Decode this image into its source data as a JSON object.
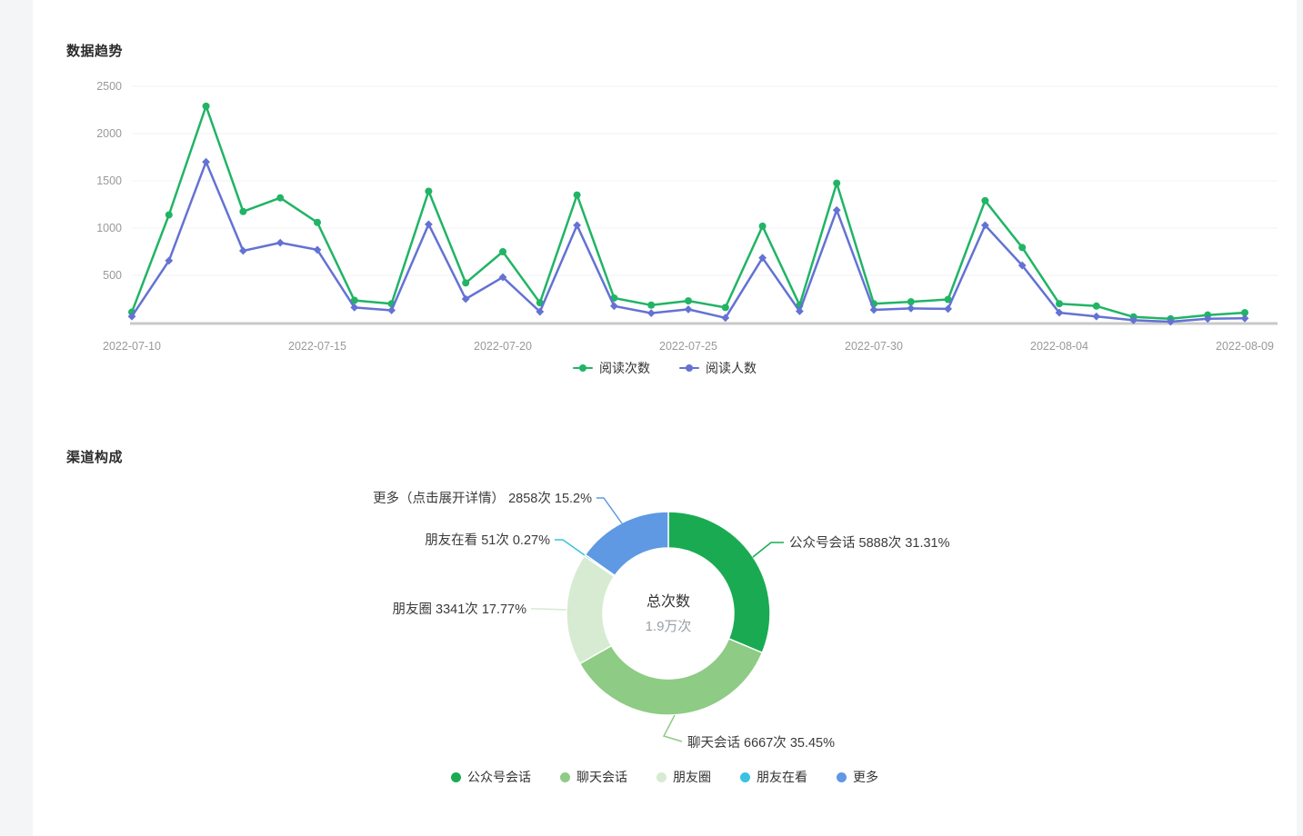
{
  "sections": {
    "trend": {
      "title": "数据趋势"
    },
    "channel": {
      "title": "渠道构成",
      "center_label": "总次数",
      "center_value": "1.9万次"
    }
  },
  "colors": {
    "read_count_line": "#21b465",
    "read_people_line": "#6472d4",
    "axis_text": "#999999",
    "gridline": "#f0f0f0",
    "axis_baseline": "#c9c9c9",
    "label_text": "#3b3b3b"
  },
  "chart_data": [
    {
      "id": "trend",
      "type": "line",
      "title": "数据趋势",
      "x": [
        "2022-07-10",
        "2022-07-11",
        "2022-07-12",
        "2022-07-13",
        "2022-07-14",
        "2022-07-15",
        "2022-07-16",
        "2022-07-17",
        "2022-07-18",
        "2022-07-19",
        "2022-07-20",
        "2022-07-21",
        "2022-07-22",
        "2022-07-23",
        "2022-07-24",
        "2022-07-25",
        "2022-07-26",
        "2022-07-27",
        "2022-07-28",
        "2022-07-29",
        "2022-07-30",
        "2022-07-31",
        "2022-08-01",
        "2022-08-02",
        "2022-08-03",
        "2022-08-04",
        "2022-08-05",
        "2022-08-06",
        "2022-08-07",
        "2022-08-08",
        "2022-08-09"
      ],
      "x_tick_labels": [
        "2022-07-10",
        "2022-07-15",
        "2022-07-20",
        "2022-07-25",
        "2022-07-30",
        "2022-08-04",
        "2022-08-09"
      ],
      "y_ticks": [
        500,
        1000,
        1500,
        2000,
        2500
      ],
      "ylim": [
        0,
        2500
      ],
      "grid": true,
      "legend_position": "bottom",
      "series": [
        {
          "name": "阅读次数",
          "color": "#21b465",
          "marker": "circle",
          "values": [
            110,
            1140,
            2290,
            1175,
            1320,
            1060,
            235,
            200,
            1390,
            420,
            750,
            210,
            1350,
            260,
            185,
            230,
            160,
            1020,
            185,
            1475,
            200,
            220,
            245,
            1290,
            795,
            200,
            175,
            60,
            40,
            80,
            105
          ]
        },
        {
          "name": "阅读人数",
          "color": "#6472d4",
          "marker": "diamond",
          "values": [
            65,
            655,
            1700,
            760,
            845,
            770,
            160,
            130,
            1040,
            250,
            480,
            115,
            1030,
            175,
            100,
            140,
            50,
            685,
            120,
            1190,
            135,
            150,
            145,
            1030,
            605,
            105,
            65,
            25,
            10,
            40,
            45
          ]
        }
      ]
    },
    {
      "id": "channel",
      "type": "pie",
      "title": "渠道构成",
      "center": {
        "label": "总次数",
        "value": "1.9万次"
      },
      "total_value": 18805,
      "slices": [
        {
          "name": "公众号会话",
          "value": 5888,
          "unit": "次",
          "pct": 31.31,
          "color": "#1aab52",
          "label": "公众号会话 5888次 31.31%"
        },
        {
          "name": "聊天会话",
          "value": 6667,
          "unit": "次",
          "pct": 35.45,
          "color": "#8ecb84",
          "label": "聊天会话 6667次 35.45%"
        },
        {
          "name": "朋友圈",
          "value": 3341,
          "unit": "次",
          "pct": 17.77,
          "color": "#d6ebd1",
          "label": "朋友圈 3341次 17.77%"
        },
        {
          "name": "朋友在看",
          "value": 51,
          "unit": "次",
          "pct": 0.27,
          "color": "#3bc1e3",
          "label": "朋友在看 51次 0.27%"
        },
        {
          "name": "更多",
          "value": 2858,
          "unit": "次",
          "pct": 15.2,
          "color": "#5f98e3",
          "label": "更多（点击展开详情） 2858次 15.2%"
        }
      ],
      "legend": [
        "公众号会话",
        "聊天会话",
        "朋友圈",
        "朋友在看",
        "更多"
      ]
    }
  ]
}
